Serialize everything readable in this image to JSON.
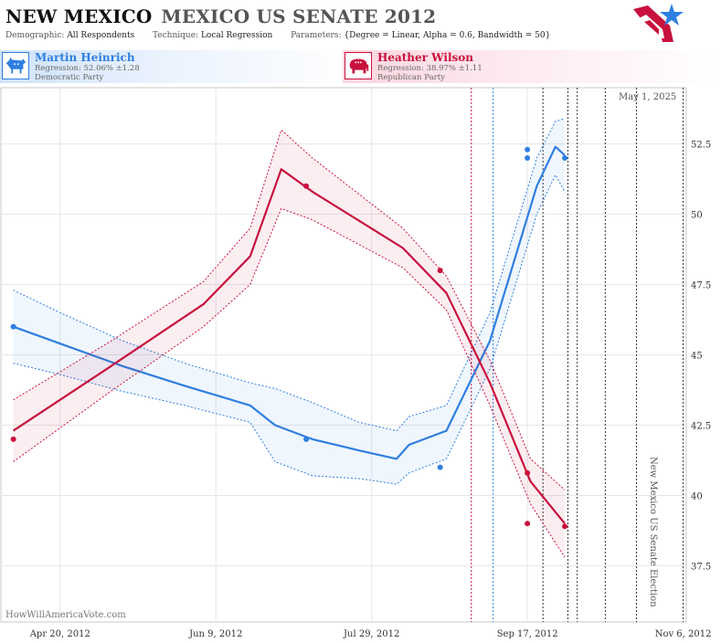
{
  "header": {
    "state": "NEW MEXICO",
    "race": "MEXICO US SENATE 2012",
    "demographic_label": "Demographic:",
    "demographic_value": "All Respondents",
    "technique_label": "Technique:",
    "technique_value": "Local Regression",
    "parameters_label": "Parameters:",
    "parameters_value": "{Degree = Linear, Alpha = 0.6, Bandwidth = 50}"
  },
  "candidates": {
    "dem": {
      "name": "Martin Heinrich",
      "regression": "Regression: 52.06% ±1.28",
      "party": "Democratic Party",
      "color": "#2e7fe0"
    },
    "rep": {
      "name": "Heather Wilson",
      "regression": "Regression: 38.97% ±1.11",
      "party": "Republican Party",
      "color": "#c8113d"
    }
  },
  "as_of": "May 1, 2025",
  "election_label": "New Mexico US Senate Election",
  "watermark": "HowWillAmericaVote.com",
  "chart_data": {
    "type": "line",
    "x_axis_type": "date",
    "x_range": [
      "2012-04-01",
      "2012-11-07"
    ],
    "y_range": [
      35.5,
      54.5
    ],
    "y_ticks": [
      37.5,
      40,
      42.5,
      45,
      47.5,
      50,
      52.5
    ],
    "y_tick_labels": [
      "37.5",
      "40",
      "42.5",
      "45",
      "47.5",
      "50",
      "52.5"
    ],
    "x_ticks": [
      "2012-04-20",
      "2012-06-09",
      "2012-07-29",
      "2012-09-17",
      "2012-11-06"
    ],
    "x_tick_labels": [
      "Apr 20, 2012",
      "Jun 9, 2012",
      "Jul 29, 2012",
      "Sep 17, 2012",
      "Nov 6, 2012"
    ],
    "grid": true,
    "event_lines": [
      {
        "date": "2012-08-30",
        "color": "#c8113d"
      },
      {
        "date": "2012-09-06",
        "color": "#2e7fe0"
      },
      {
        "date": "2012-09-22",
        "color": "#333333"
      },
      {
        "date": "2012-09-30",
        "color": "#333333"
      },
      {
        "date": "2012-10-03",
        "color": "#333333"
      },
      {
        "date": "2012-10-12",
        "color": "#333333"
      },
      {
        "date": "2012-10-22",
        "color": "#333333"
      },
      {
        "date": "2012-11-06",
        "color": "#333333"
      }
    ],
    "series": [
      {
        "key": "dem",
        "color": "#2e7fe0",
        "fill": "rgba(46,127,224,0.07)",
        "points": [
          {
            "x": "2012-04-05",
            "y": 46.0
          },
          {
            "x": "2012-07-08",
            "y": 42.0
          },
          {
            "x": "2012-08-20",
            "y": 41.0
          },
          {
            "x": "2012-09-17",
            "y": 52.3
          },
          {
            "x": "2012-09-17",
            "y": 52.0
          },
          {
            "x": "2012-09-29",
            "y": 52.0
          }
        ],
        "regression": [
          {
            "x": "2012-04-05",
            "y": 46.0,
            "lo": 44.7,
            "hi": 47.3
          },
          {
            "x": "2012-04-20",
            "y": 45.4,
            "lo": 44.3,
            "hi": 46.5
          },
          {
            "x": "2012-05-10",
            "y": 44.6,
            "lo": 43.7,
            "hi": 45.5
          },
          {
            "x": "2012-05-30",
            "y": 43.9,
            "lo": 43.2,
            "hi": 44.7
          },
          {
            "x": "2012-06-20",
            "y": 43.2,
            "lo": 42.6,
            "hi": 44.0
          },
          {
            "x": "2012-06-28",
            "y": 42.5,
            "lo": 41.2,
            "hi": 43.8
          },
          {
            "x": "2012-07-10",
            "y": 42.0,
            "lo": 40.7,
            "hi": 43.3
          },
          {
            "x": "2012-07-25",
            "y": 41.6,
            "lo": 40.6,
            "hi": 42.6
          },
          {
            "x": "2012-08-06",
            "y": 41.3,
            "lo": 40.4,
            "hi": 42.3
          },
          {
            "x": "2012-08-10",
            "y": 41.8,
            "lo": 40.8,
            "hi": 42.8
          },
          {
            "x": "2012-08-22",
            "y": 42.3,
            "lo": 41.3,
            "hi": 43.2
          },
          {
            "x": "2012-09-05",
            "y": 45.5,
            "lo": 44.5,
            "hi": 46.5
          },
          {
            "x": "2012-09-20",
            "y": 51.0,
            "lo": 50.0,
            "hi": 52.0
          },
          {
            "x": "2012-09-26",
            "y": 52.4,
            "lo": 51.4,
            "hi": 53.3
          },
          {
            "x": "2012-09-29",
            "y": 52.1,
            "lo": 50.8,
            "hi": 53.4
          }
        ]
      },
      {
        "key": "rep",
        "color": "#c8113d",
        "fill": "rgba(200,17,61,0.07)",
        "points": [
          {
            "x": "2012-04-05",
            "y": 42.0
          },
          {
            "x": "2012-07-08",
            "y": 51.0
          },
          {
            "x": "2012-08-20",
            "y": 48.0
          },
          {
            "x": "2012-09-17",
            "y": 40.8
          },
          {
            "x": "2012-09-17",
            "y": 39.0
          },
          {
            "x": "2012-09-29",
            "y": 38.9
          }
        ],
        "regression": [
          {
            "x": "2012-04-05",
            "y": 42.3,
            "lo": 41.2,
            "hi": 43.4
          },
          {
            "x": "2012-05-05",
            "y": 44.5,
            "lo": 43.6,
            "hi": 45.4
          },
          {
            "x": "2012-06-05",
            "y": 46.8,
            "lo": 46.0,
            "hi": 47.6
          },
          {
            "x": "2012-06-20",
            "y": 48.5,
            "lo": 47.5,
            "hi": 49.5
          },
          {
            "x": "2012-06-30",
            "y": 51.6,
            "lo": 50.2,
            "hi": 53.0
          },
          {
            "x": "2012-07-10",
            "y": 50.8,
            "lo": 49.8,
            "hi": 52.0
          },
          {
            "x": "2012-08-08",
            "y": 48.8,
            "lo": 48.1,
            "hi": 49.5
          },
          {
            "x": "2012-08-22",
            "y": 47.2,
            "lo": 46.6,
            "hi": 47.8
          },
          {
            "x": "2012-09-05",
            "y": 44.0,
            "lo": 43.2,
            "hi": 44.8
          },
          {
            "x": "2012-09-18",
            "y": 40.5,
            "lo": 39.7,
            "hi": 41.3
          },
          {
            "x": "2012-09-29",
            "y": 39.0,
            "lo": 37.8,
            "hi": 40.2
          }
        ]
      }
    ]
  }
}
